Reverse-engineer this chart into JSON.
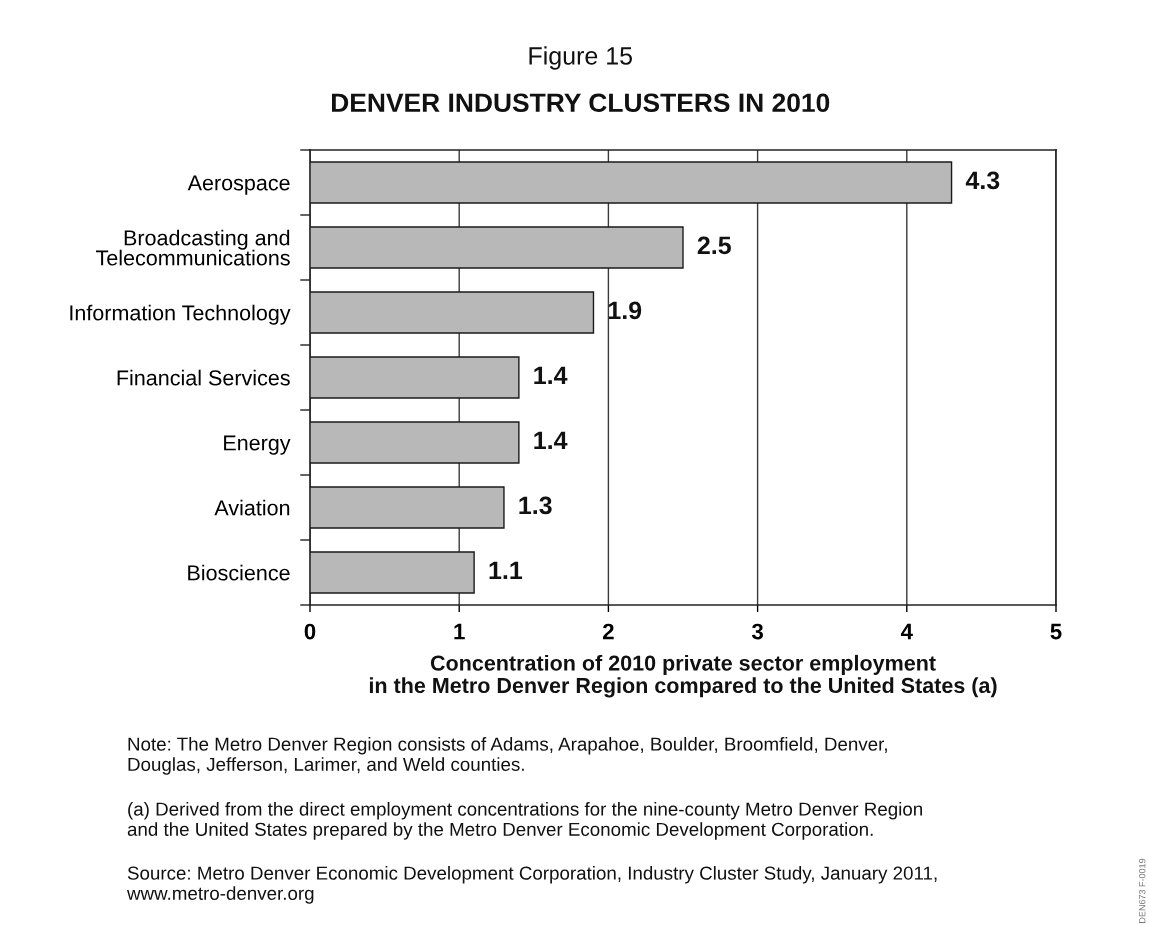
{
  "chart_data": {
    "type": "bar",
    "orientation": "horizontal",
    "title": "Figure 15",
    "subtitle": "DENVER INDUSTRY CLUSTERS IN 2010",
    "xlabel": "Concentration of 2010 private sector employment\nin the Metro Denver Region compared to the United States (a)",
    "categories": [
      "Aerospace",
      "Broadcasting and\nTelecommunications",
      "Information Technology",
      "Financial Services",
      "Energy",
      "Aviation",
      "Bioscience"
    ],
    "values": [
      4.3,
      2.5,
      1.9,
      1.4,
      1.4,
      1.3,
      1.1
    ],
    "color": "#b8b8b8",
    "data_labels": true,
    "xlim": [
      0,
      5
    ],
    "xticks": [
      0,
      1,
      2,
      3,
      4,
      5
    ],
    "grid": "x",
    "annotations": [
      "Note: The Metro Denver Region consists of Adams, Arapahoe, Boulder, Broomfield, Denver,\nDouglas, Jefferson, Larimer, and Weld counties.",
      "(a) Derived from the direct employment concentrations for the nine-county Metro Denver Region\nand the United States prepared by the Metro Denver Economic Development Corporation.",
      "Source: Metro Denver Economic Development Corporation, Industry Cluster Study, January 2011,\nwww.metro-denver.org",
      "DEN673 F-0019"
    ]
  }
}
